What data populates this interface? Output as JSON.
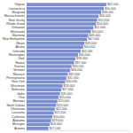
{
  "chart_data": {
    "type": "bar",
    "orientation": "horizontal",
    "categories": [
      "Virginia",
      "Connecticut",
      "Maryland",
      "Massachusetts",
      "New Jersey",
      "Rhode Island",
      "Delaware",
      "Minnesota",
      "Wyoming",
      "New Hampshire",
      "Illinois",
      "Alaska",
      "Colorado",
      "Washington",
      "Utah",
      "Hawaii",
      "Kansas",
      "Vermont",
      "Missouri",
      "Pennsylvania",
      "New York",
      "Wisconsin",
      "Nebraska",
      "Idaho",
      "Ohio",
      "Montana",
      "North Dakota",
      "Oklahoma",
      "Louisiana",
      "California",
      "Alabama",
      "Michigan",
      "Arizona"
    ],
    "values": [
      62000,
      60000,
      58000,
      56000,
      55000,
      54000,
      52000,
      50000,
      48000,
      47000,
      45000,
      44000,
      42000,
      40000,
      38000,
      37000,
      35000,
      34000,
      32000,
      31000,
      30000,
      28000,
      27000,
      26000,
      25000,
      24000,
      23000,
      22000,
      21000,
      20000,
      19000,
      18000,
      17000
    ],
    "value_labels": [
      "$62,000",
      "$60,000",
      "$58,000",
      "$56,000",
      "$55,000",
      "$54,000",
      "$52,000",
      "$50,000",
      "$48,000",
      "$47,000",
      "$45,000",
      "$44,000",
      "$42,000",
      "$40,000",
      "$38,000",
      "$37,000",
      "$35,000",
      "$34,000",
      "$32,000",
      "$31,000",
      "$30,000",
      "$28,000",
      "$27,000",
      "$26,000",
      "$25,000",
      "$24,000",
      "$23,000",
      "$22,000",
      "$21,000",
      "$20,000",
      "$19,000",
      "$18,000",
      "$17,000"
    ],
    "color": "#7b8fd0",
    "xlim": [
      0,
      80000
    ],
    "data_labels": true,
    "tick_labels": "y",
    "grid": false
  }
}
